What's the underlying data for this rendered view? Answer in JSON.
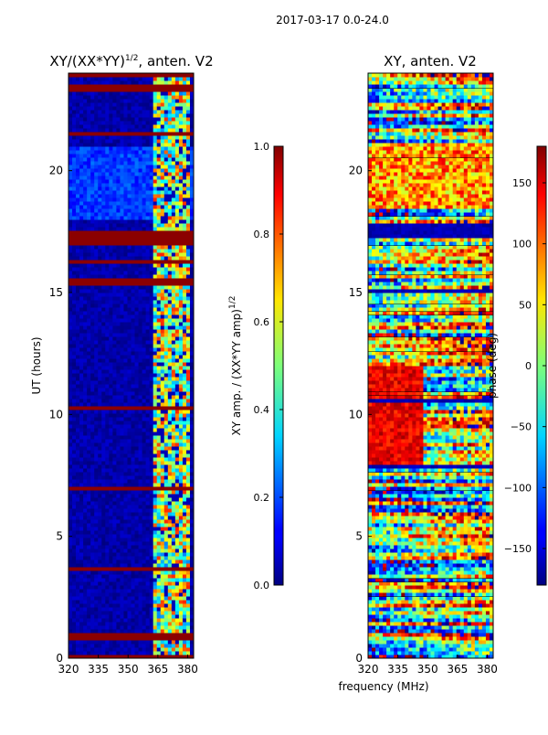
{
  "suptitle": "2017-03-17 0.0-24.0",
  "chart_data": [
    {
      "type": "heatmap",
      "title_main": "XY/(XX*YY)",
      "title_exp": "1/2",
      "title_suffix": ", anten. V2",
      "xlabel": "",
      "ylabel": "UT (hours)",
      "xlim": [
        320,
        383
      ],
      "ylim": [
        0,
        24
      ],
      "xticks": [
        320,
        335,
        350,
        365,
        380
      ],
      "yticks": [
        0,
        5,
        10,
        15,
        20
      ],
      "colorbar": {
        "label_main": "XY amp. / (XX*YY amp)",
        "label_exp": "1/2",
        "range": [
          0.0,
          1.0
        ],
        "ticks": [
          "0.0",
          "0.2",
          "0.4",
          "0.6",
          "0.8",
          "1.0"
        ],
        "tick_values": [
          0.0,
          0.2,
          0.4,
          0.6,
          0.8,
          1.0
        ],
        "colormap": "jet"
      }
    },
    {
      "type": "heatmap",
      "title": "XY, anten. V2",
      "xlabel": "frequency (MHz)",
      "ylabel": "",
      "xlim": [
        320,
        383
      ],
      "ylim": [
        0,
        24
      ],
      "xticks": [
        320,
        335,
        350,
        365,
        380
      ],
      "yticks": [
        0,
        5,
        10,
        15,
        20
      ],
      "colorbar": {
        "label": "phase (deg)",
        "range": [
          -180,
          180
        ],
        "ticks": [
          "150",
          "100",
          "50",
          "0",
          "−50",
          "−100",
          "−150"
        ],
        "tick_values": [
          150,
          100,
          50,
          0,
          -50,
          -100,
          -150
        ],
        "colormap": "jet"
      }
    }
  ]
}
